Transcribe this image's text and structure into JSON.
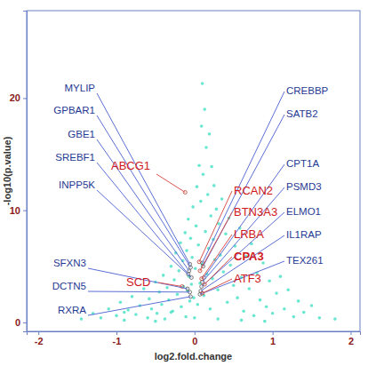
{
  "chart_data": {
    "type": "scatter",
    "x_label": "log2.fold.change",
    "y_label": "-log10(p.value)",
    "xlim": [
      -2.15,
      2.12
    ],
    "ylim": [
      -0.8,
      27.8
    ],
    "xticks": [
      -2,
      -1,
      0,
      1,
      2
    ],
    "yticks": [
      0,
      10,
      20
    ],
    "series": [
      {
        "color": "#4fe3c9",
        "x": [
          -1.45,
          -1.3,
          -1.2,
          -1.1,
          -1.0,
          -0.95,
          -0.9,
          -0.85,
          -0.8,
          -0.75,
          -0.7,
          -0.65,
          -0.6,
          -0.58,
          -0.55,
          -0.5,
          -0.48,
          -0.45,
          -0.42,
          -0.4,
          -0.38,
          -0.35,
          -0.33,
          -0.3,
          -0.28,
          -0.26,
          -0.24,
          -0.22,
          -0.2,
          -0.18,
          -0.17,
          -0.15,
          -0.14,
          -0.12,
          -0.11,
          -0.1,
          -0.09,
          -0.08,
          -0.07,
          -0.06,
          -0.05,
          -0.04,
          -0.03,
          -0.02,
          -0.01,
          0.0,
          0.01,
          0.02,
          0.03,
          0.04,
          0.05,
          0.06,
          0.07,
          0.08,
          0.09,
          0.1,
          0.1,
          0.11,
          0.12,
          0.13,
          0.14,
          0.15,
          0.16,
          0.17,
          0.18,
          0.19,
          0.2,
          0.21,
          0.22,
          0.23,
          0.24,
          0.25,
          0.26,
          0.28,
          0.3,
          0.31,
          0.33,
          0.35,
          0.37,
          0.4,
          0.42,
          0.44,
          0.46,
          0.5,
          0.52,
          0.55,
          0.58,
          0.6,
          0.63,
          0.66,
          0.7,
          0.73,
          0.76,
          0.8,
          0.84,
          0.88,
          0.92,
          0.96,
          1.0,
          1.05,
          1.1,
          1.15,
          1.2,
          1.27,
          1.33,
          1.4,
          1.5,
          1.6,
          -0.3,
          0.3,
          -0.5,
          0.6,
          0.9,
          -0.9,
          1.8
        ],
        "values": [
          0.3,
          0.8,
          0.4,
          1.2,
          0.6,
          1.8,
          0.2,
          1.1,
          2.3,
          0.7,
          1.5,
          3.0,
          0.4,
          2.1,
          1.2,
          3.6,
          0.8,
          2.7,
          1.6,
          4.2,
          0.3,
          3.1,
          2.0,
          5.0,
          1.0,
          3.8,
          6.2,
          2.5,
          4.6,
          7.1,
          1.4,
          5.5,
          3.2,
          8.0,
          0.5,
          6.4,
          2.8,
          9.2,
          4.1,
          1.9,
          7.5,
          3.4,
          5.8,
          10.3,
          2.2,
          0.4,
          4.8,
          8.6,
          12.1,
          1.6,
          6.9,
          14.0,
          3.5,
          10.8,
          17.5,
          5.2,
          21.3,
          13.2,
          2.4,
          19.0,
          8.1,
          15.6,
          4.3,
          11.4,
          6.6,
          16.8,
          1.2,
          9.5,
          13.9,
          3.9,
          7.4,
          12.2,
          5.6,
          10.1,
          2.9,
          8.8,
          6.0,
          11.0,
          4.5,
          7.9,
          1.8,
          9.3,
          5.1,
          3.3,
          6.8,
          2.2,
          8.4,
          4.0,
          1.0,
          5.9,
          3.0,
          7.0,
          0.6,
          4.4,
          2.0,
          5.3,
          1.4,
          3.7,
          0.8,
          2.6,
          4.1,
          1.2,
          2.9,
          0.5,
          1.9,
          0.9,
          1.5,
          0.4,
          0.9,
          0.3,
          0.1,
          0.2,
          0.1,
          0.9,
          0.3
        ]
      }
    ],
    "annotations": [
      {
        "text": "MYLIP",
        "x": -0.06,
        "y": 5.2,
        "color": "#1f3a93"
      },
      {
        "text": "GPBAR1",
        "x": -0.05,
        "y": 4.9,
        "color": "#1f3a93"
      },
      {
        "text": "GBE1",
        "x": -0.07,
        "y": 4.6,
        "color": "#1f3a93"
      },
      {
        "text": "SREBF1",
        "x": -0.08,
        "y": 4.3,
        "color": "#1f3a93"
      },
      {
        "text": "INPP5K",
        "x": -0.04,
        "y": 4.0,
        "color": "#1f3a93"
      },
      {
        "text": "SFXN3",
        "x": -0.09,
        "y": 3.0,
        "color": "#1f3a93"
      },
      {
        "text": "DCTN5",
        "x": -0.06,
        "y": 2.7,
        "color": "#1f3a93"
      },
      {
        "text": "RXRA",
        "x": -0.05,
        "y": 2.3,
        "color": "#1f3a93"
      },
      {
        "text": "ABCG1",
        "x": -0.12,
        "y": 11.6,
        "color": "#d0181c"
      },
      {
        "text": "SCD",
        "x": -0.16,
        "y": 3.2,
        "color": "#d0181c"
      },
      {
        "text": "CREBBP",
        "x": 0.1,
        "y": 5.3,
        "color": "#1f3a93"
      },
      {
        "text": "SATB2",
        "x": 0.11,
        "y": 5.0,
        "color": "#1f3a93"
      },
      {
        "text": "CPT1A",
        "x": 0.12,
        "y": 4.0,
        "color": "#1f3a93"
      },
      {
        "text": "PSMD3",
        "x": 0.1,
        "y": 3.6,
        "color": "#1f3a93"
      },
      {
        "text": "ELMO1",
        "x": 0.09,
        "y": 3.2,
        "color": "#1f3a93"
      },
      {
        "text": "IL1RAP",
        "x": 0.08,
        "y": 2.8,
        "color": "#1f3a93"
      },
      {
        "text": "TEX261",
        "x": 0.07,
        "y": 2.5,
        "color": "#1f3a93"
      },
      {
        "text": "RCAN2",
        "x": 0.06,
        "y": 5.4,
        "color": "#d0181c"
      },
      {
        "text": "BTN3A3",
        "x": 0.07,
        "y": 4.6,
        "color": "#d0181c"
      },
      {
        "text": "LRBA",
        "x": 0.09,
        "y": 3.9,
        "color": "#d0181c"
      },
      {
        "text": "CPA3",
        "x": 0.13,
        "y": 3.4,
        "color": "#d0181c"
      },
      {
        "text": "ATF3",
        "x": 0.1,
        "y": 2.6,
        "color": "#d0181c"
      }
    ]
  }
}
